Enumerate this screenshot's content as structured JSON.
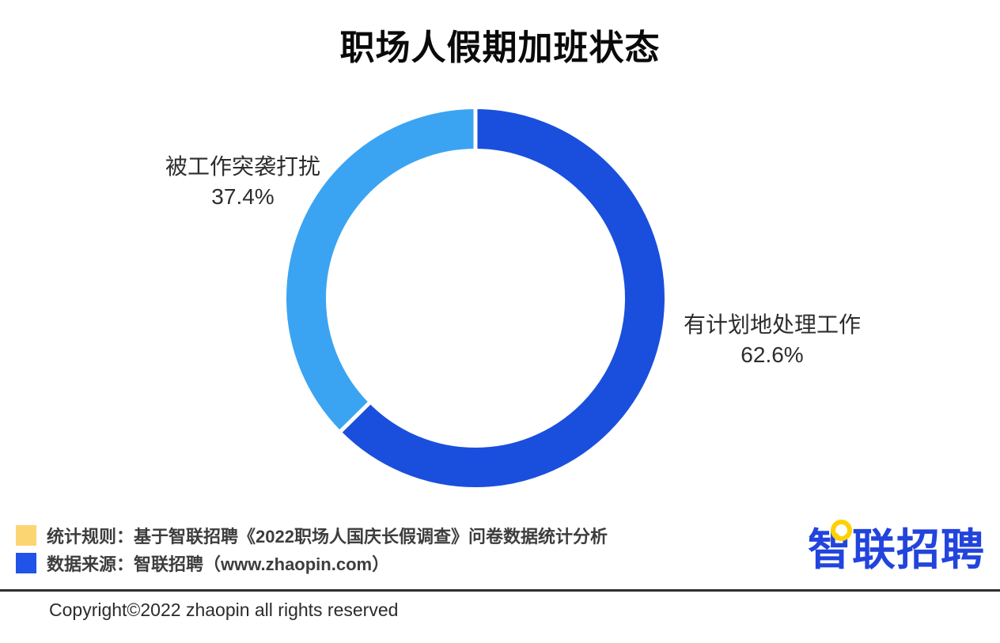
{
  "page": {
    "background": "#ffffff"
  },
  "chart_data": {
    "type": "pie",
    "title": "职场人假期加班状态",
    "categories": [
      "有计划地处理工作",
      "被工作突袭打扰"
    ],
    "values": [
      62.6,
      37.4
    ],
    "slices": [
      {
        "label": "有计划地处理工作",
        "value": 62.6,
        "pct_label": "62.6%",
        "color": "#1a4fdd"
      },
      {
        "label": "被工作突袭打扰",
        "value": 37.4,
        "pct_label": "37.4%",
        "color": "#3ba4f2"
      }
    ],
    "style": {
      "shape": "donut",
      "start": "top",
      "direction": "clockwise",
      "slice_gap_color": "#ffffff",
      "labels": "outside",
      "legend_position": "none"
    }
  },
  "footer": {
    "legend": [
      {
        "swatch_color": "#fcd573",
        "text": "统计规则：基于智联招聘《2022职场人国庆长假调查》问卷数据统计分析"
      },
      {
        "swatch_color": "#2153e8",
        "text": "数据来源：智联招聘（www.zhaopin.com）"
      }
    ],
    "logo": {
      "first_char": "智",
      "rest_chars": "联招聘",
      "full_text": "智联招聘",
      "color": "#2244dd",
      "accent_color": "#ffd100"
    },
    "divider_color": "#2e2e2e",
    "copyright": "Copyright©2022 zhaopin all rights reserved"
  }
}
